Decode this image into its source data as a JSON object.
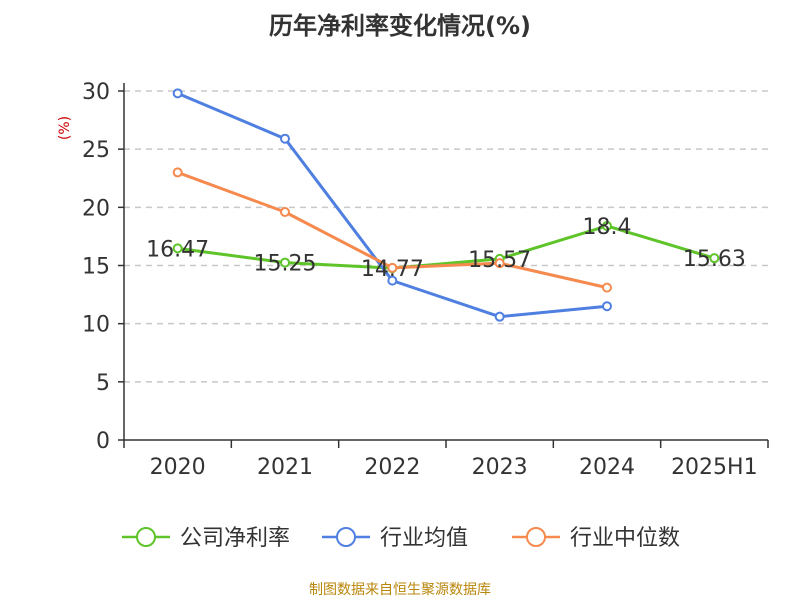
{
  "chart_data": {
    "type": "line",
    "title": "历年净利率变化情况(%)",
    "ylabel": "(%)",
    "categories": [
      "2020",
      "2021",
      "2022",
      "2023",
      "2024",
      "2025H1"
    ],
    "ylim": [
      0,
      30
    ],
    "yticks": [
      0,
      5,
      10,
      15,
      20,
      25,
      30
    ],
    "grid": "horizontal dashed",
    "legend_position": "bottom",
    "series": [
      {
        "name": "公司净利率",
        "color": "#5ec429",
        "values": [
          16.47,
          15.25,
          14.77,
          15.57,
          18.4,
          15.63
        ],
        "labels": [
          "16.47",
          "15.25",
          "14.77",
          "15.57",
          "18.4",
          "15.63"
        ]
      },
      {
        "name": "行业均值",
        "color": "#4f7fe0",
        "values": [
          29.8,
          25.9,
          13.7,
          10.6,
          11.5,
          null
        ]
      },
      {
        "name": "行业中位数",
        "color": "#f5894e",
        "values": [
          23.0,
          19.6,
          14.8,
          15.2,
          13.1,
          null
        ]
      }
    ]
  },
  "footer": {
    "source": "制图数据来自恒生聚源数据库"
  }
}
